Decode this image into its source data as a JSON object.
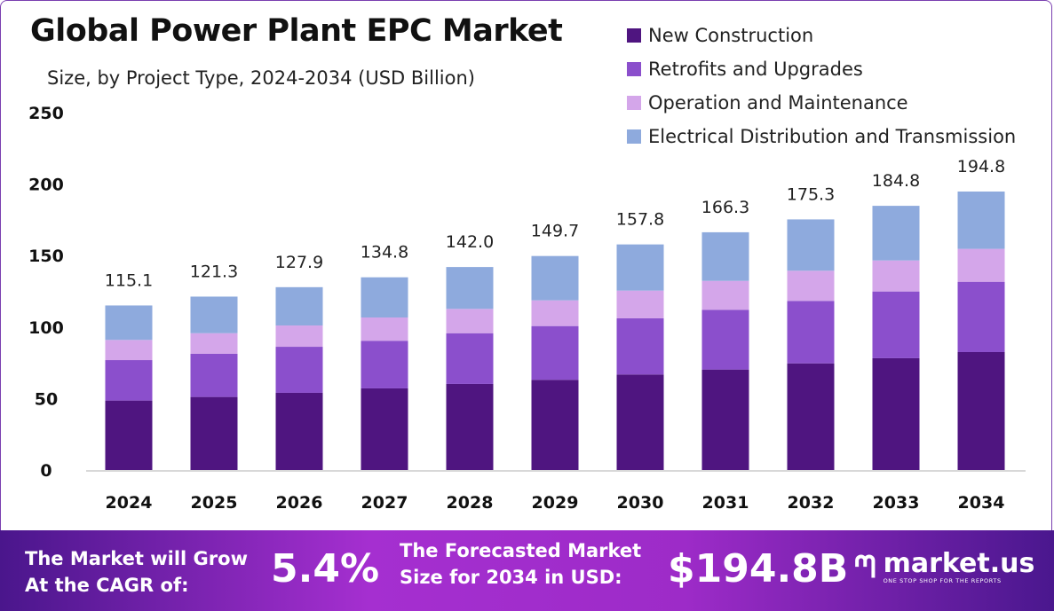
{
  "chart_data": {
    "type": "bar",
    "stacked": true,
    "title": "Global Power Plant EPC Market",
    "subtitle": "Size, by Project Type, 2024-2034 (USD Billion)",
    "categories": [
      "2024",
      "2025",
      "2026",
      "2027",
      "2028",
      "2029",
      "2030",
      "2031",
      "2032",
      "2033",
      "2034"
    ],
    "series": [
      {
        "name": "New Construction",
        "color": "#4f1580",
        "values": [
          48.6,
          51.1,
          54.0,
          57.1,
          60.2,
          63.1,
          66.8,
          70.3,
          74.6,
          78.2,
          82.5
        ]
      },
      {
        "name": "Retrofits and Upgrades",
        "color": "#8b4fcc",
        "values": [
          28.3,
          30.2,
          32.2,
          33.3,
          35.5,
          37.6,
          39.3,
          41.8,
          43.7,
          46.7,
          49.2
        ]
      },
      {
        "name": "Operation and Maintenance",
        "color": "#d4a6ea",
        "values": [
          14.1,
          14.4,
          14.9,
          16.3,
          17.0,
          18.0,
          19.4,
          20.2,
          21.1,
          21.7,
          23.0
        ]
      },
      {
        "name": "Electrical Distribution and Transmission",
        "color": "#8eaadd",
        "values": [
          24.1,
          25.6,
          26.8,
          28.1,
          29.3,
          31.0,
          32.3,
          34.0,
          35.9,
          38.2,
          40.1
        ]
      }
    ],
    "totals": [
      "115.1",
      "121.3",
      "127.9",
      "134.8",
      "142.0",
      "149.7",
      "157.8",
      "166.3",
      "175.3",
      "184.8",
      "194.8"
    ],
    "yticks": [
      "0",
      "50",
      "100",
      "150",
      "200",
      "250"
    ],
    "ylim": [
      0,
      250
    ],
    "grid": false,
    "legend": "top-right"
  },
  "banner": {
    "cagr_text_1": "The Market will Grow",
    "cagr_text_2": "At the CAGR of:",
    "cagr_value": "5.4%",
    "forecast_text_1": "The Forecasted Market",
    "forecast_text_2": "Size for 2034 in USD:",
    "forecast_value": "$194.8B",
    "logo_name": "market.us",
    "logo_tagline": "ONE STOP SHOP FOR THE REPORTS"
  }
}
